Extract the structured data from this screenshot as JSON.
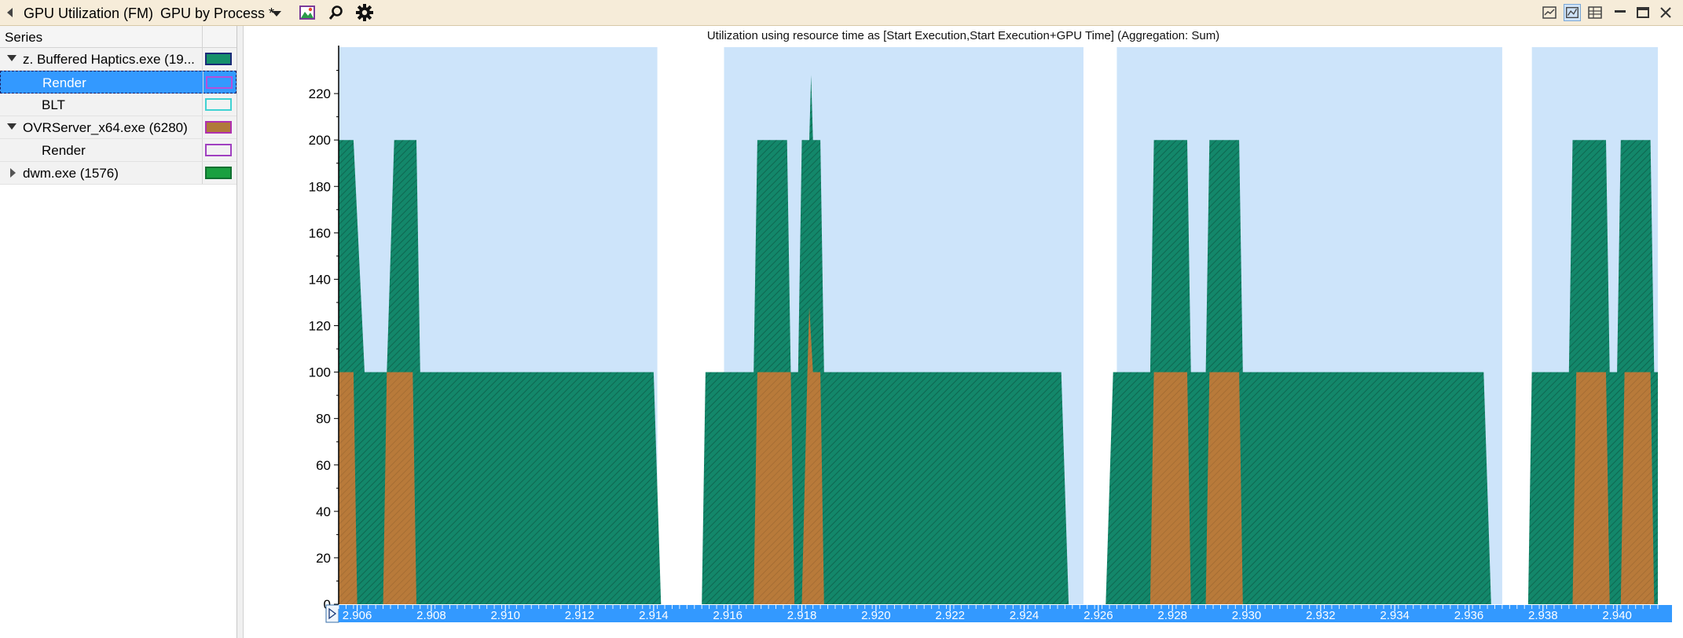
{
  "window": {
    "title": "GPU Utilization (FM)",
    "preset": "GPU by Process *"
  },
  "icons": {
    "view": "graph-image-icon",
    "search": "search-icon",
    "settings": "gear-icon",
    "window_buttons": [
      "graph-only-icon",
      "graph-and-table-icon",
      "table-only-icon",
      "minimize-icon",
      "maximize-icon",
      "close-icon"
    ]
  },
  "series_panel": {
    "header": "Series",
    "rows": [
      {
        "label": "z. Buffered Haptics.exe (19...",
        "indent": 0,
        "expander": "open",
        "swatch_fill": "#15906a",
        "swatch_border": "#1a2a78",
        "selected": false
      },
      {
        "label": "Render",
        "indent": 1,
        "expander": "none",
        "swatch_fill": "transparent",
        "swatch_border": "#b64fd9",
        "selected": true
      },
      {
        "label": "BLT",
        "indent": 1,
        "expander": "none",
        "swatch_fill": "transparent",
        "swatch_border": "#3fd2d2",
        "selected": false
      },
      {
        "label": "OVRServer_x64.exe (6280)",
        "indent": 0,
        "expander": "open",
        "swatch_fill": "#b07a3a",
        "swatch_border": "#b030b0",
        "selected": false
      },
      {
        "label": "Render",
        "indent": 1,
        "expander": "none",
        "swatch_fill": "transparent",
        "swatch_border": "#a040c0",
        "selected": false
      },
      {
        "label": "dwm.exe (1576)",
        "indent": 0,
        "expander": "closed",
        "swatch_fill": "#1aa040",
        "swatch_border": "#107030",
        "selected": false
      }
    ]
  },
  "chart_data": {
    "type": "area",
    "title": "Utilization using resource time as [Start Execution,Start Execution+GPU Time] (Aggregation: Sum)",
    "xlabel": "",
    "ylabel": "",
    "xlim": [
      2.9055,
      2.9411
    ],
    "ylim": [
      0,
      240
    ],
    "y_ticks": [
      0,
      20,
      40,
      60,
      80,
      100,
      120,
      140,
      160,
      180,
      200,
      220
    ],
    "x_ticks": [
      "2.906",
      "2.908",
      "2.910",
      "2.912",
      "2.914",
      "2.916",
      "2.918",
      "2.920",
      "2.922",
      "2.924",
      "2.926",
      "2.928",
      "2.930",
      "2.932",
      "2.934",
      "2.936",
      "2.938",
      "2.940"
    ],
    "x_tick_values": [
      2.906,
      2.908,
      2.91,
      2.912,
      2.914,
      2.916,
      2.918,
      2.92,
      2.922,
      2.924,
      2.926,
      2.928,
      2.93,
      2.932,
      2.934,
      2.936,
      2.938,
      2.94
    ],
    "colors": {
      "background_band": "#cde4fa",
      "haptics_area": "#13876a",
      "ovr_area": "#b87a3a",
      "axis_bar": "#3399ff"
    },
    "background_bands": [
      [
        2.9055,
        2.9141
      ],
      [
        2.9159,
        2.9256
      ],
      [
        2.9265,
        2.9369
      ],
      [
        2.9377,
        2.9411
      ]
    ],
    "series": [
      {
        "name": "z. Buffered Haptics.exe (19...",
        "points": [
          [
            2.9055,
            200
          ],
          [
            2.9059,
            200
          ],
          [
            2.9062,
            100
          ],
          [
            2.9068,
            100
          ],
          [
            2.907,
            200
          ],
          [
            2.9076,
            200
          ],
          [
            2.9077,
            100
          ],
          [
            2.914,
            100
          ],
          [
            2.9142,
            0
          ],
          [
            2.9153,
            0
          ],
          [
            2.9154,
            100
          ],
          [
            2.9167,
            100
          ],
          [
            2.9168,
            200
          ],
          [
            2.9176,
            200
          ],
          [
            2.9177,
            100
          ],
          [
            2.9179,
            100
          ],
          [
            2.918,
            200
          ],
          [
            2.9182,
            200
          ],
          [
            2.91825,
            228
          ],
          [
            2.9183,
            200
          ],
          [
            2.9185,
            200
          ],
          [
            2.9186,
            100
          ],
          [
            2.925,
            100
          ],
          [
            2.9252,
            0
          ],
          [
            2.9262,
            0
          ],
          [
            2.9264,
            100
          ],
          [
            2.9274,
            100
          ],
          [
            2.9275,
            200
          ],
          [
            2.9284,
            200
          ],
          [
            2.9285,
            100
          ],
          [
            2.9289,
            100
          ],
          [
            2.929,
            200
          ],
          [
            2.9298,
            200
          ],
          [
            2.9299,
            100
          ],
          [
            2.9364,
            100
          ],
          [
            2.9366,
            0
          ],
          [
            2.9376,
            0
          ],
          [
            2.9377,
            100
          ],
          [
            2.9387,
            100
          ],
          [
            2.9388,
            200
          ],
          [
            2.9397,
            200
          ],
          [
            2.9398,
            100
          ],
          [
            2.94,
            100
          ],
          [
            2.9401,
            200
          ],
          [
            2.9409,
            200
          ],
          [
            2.941,
            100
          ],
          [
            2.9411,
            100
          ]
        ]
      },
      {
        "name": "OVRServer_x64.exe (6280)",
        "points": [
          [
            2.9055,
            100
          ],
          [
            2.9059,
            100
          ],
          [
            2.906,
            0
          ],
          [
            2.9067,
            0
          ],
          [
            2.9068,
            100
          ],
          [
            2.9075,
            100
          ],
          [
            2.9076,
            0
          ],
          [
            2.9167,
            0
          ],
          [
            2.9168,
            100
          ],
          [
            2.9177,
            100
          ],
          [
            2.9178,
            0
          ],
          [
            2.918,
            0
          ],
          [
            2.91815,
            100
          ],
          [
            2.9182,
            128
          ],
          [
            2.9183,
            100
          ],
          [
            2.9185,
            100
          ],
          [
            2.9186,
            0
          ],
          [
            2.9274,
            0
          ],
          [
            2.9275,
            100
          ],
          [
            2.9284,
            100
          ],
          [
            2.9285,
            0
          ],
          [
            2.9289,
            0
          ],
          [
            2.929,
            100
          ],
          [
            2.9298,
            100
          ],
          [
            2.9299,
            0
          ],
          [
            2.9388,
            0
          ],
          [
            2.9389,
            100
          ],
          [
            2.9397,
            100
          ],
          [
            2.9398,
            0
          ],
          [
            2.9401,
            0
          ],
          [
            2.9402,
            100
          ],
          [
            2.9409,
            100
          ],
          [
            2.941,
            0
          ],
          [
            2.9411,
            0
          ]
        ]
      }
    ]
  }
}
